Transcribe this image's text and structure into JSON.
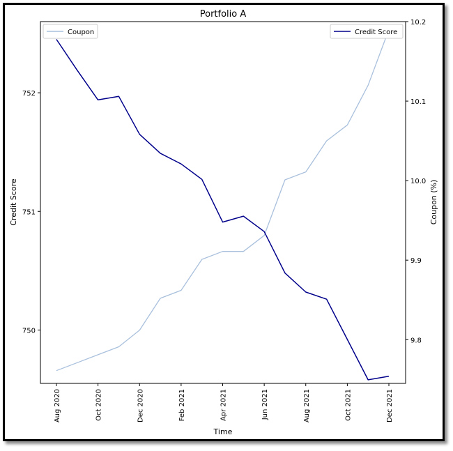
{
  "chart_data": {
    "type": "line",
    "title": "Portfolio A",
    "xlabel": "Time",
    "x": [
      "2020-08",
      "2020-09",
      "2020-10",
      "2020-11",
      "2020-12",
      "2021-01",
      "2021-02",
      "2021-03",
      "2021-04",
      "2021-05",
      "2021-06",
      "2021-07",
      "2021-08",
      "2021-09",
      "2021-10",
      "2021-11",
      "2021-12"
    ],
    "x_tick_labels": [
      "Aug 2020",
      "Oct 2020",
      "Dec 2020",
      "Feb 2021",
      "Apr 2021",
      "Jun 2021",
      "Aug 2021",
      "Oct 2021",
      "Dec 2021"
    ],
    "left_axis": {
      "label": "Credit Score",
      "ylim": [
        749.55,
        752.6
      ],
      "ticks": [
        750,
        751,
        752
      ]
    },
    "right_axis": {
      "label": "Coupon (%)",
      "ylim": [
        9.745,
        10.2
      ],
      "ticks": [
        9.8,
        9.9,
        10.0,
        10.1,
        10.2
      ],
      "tick_labels": [
        "9.8",
        "9.9",
        "10.0",
        "10.1",
        "10.2"
      ]
    },
    "series": [
      {
        "name": "Credit Score",
        "axis": "left",
        "color": "#00008b",
        "values": [
          752.45,
          752.19,
          751.94,
          751.97,
          751.65,
          751.49,
          751.4,
          751.27,
          750.91,
          750.96,
          750.83,
          750.48,
          750.32,
          750.26,
          749.92,
          749.58,
          749.61
        ]
      },
      {
        "name": "Coupon",
        "axis": "right",
        "color": "#a9c0dd",
        "values": [
          9.761,
          9.771,
          9.781,
          9.791,
          9.812,
          9.852,
          9.862,
          9.901,
          9.911,
          9.911,
          9.931,
          10.001,
          10.011,
          10.05,
          10.07,
          10.12,
          10.19
        ]
      }
    ],
    "legend": [
      {
        "label": "Coupon",
        "position": "top-left"
      },
      {
        "label": "Credit Score",
        "position": "top-right"
      }
    ],
    "grid": false
  }
}
